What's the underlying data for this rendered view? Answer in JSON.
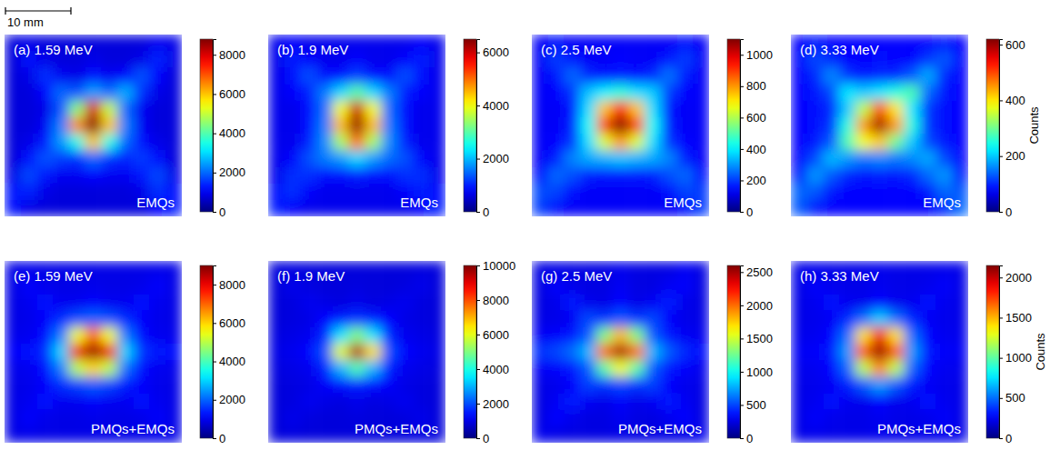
{
  "scale_bar": {
    "label": "10 mm"
  },
  "chart_data": [
    {
      "type": "heatmap",
      "title": "(a) 1.59 MeV",
      "annotation": "EMQs",
      "tick_labels": false,
      "colorbar_lim": [
        0,
        8800
      ],
      "colorbar_ticks": [
        0,
        2000,
        4000,
        6000,
        8000
      ],
      "cells": [
        [
          800,
          900,
          800,
          800,
          800,
          800,
          800,
          800,
          800,
          1000,
          900
        ],
        [
          800,
          1200,
          900,
          800,
          800,
          900,
          800,
          800,
          900,
          1400,
          900
        ],
        [
          800,
          900,
          1500,
          1000,
          900,
          1200,
          1000,
          1100,
          1800,
          1100,
          800
        ],
        [
          800,
          800,
          1100,
          2000,
          1800,
          2500,
          2000,
          2600,
          1500,
          900,
          800
        ],
        [
          800,
          800,
          900,
          1800,
          4500,
          8000,
          5000,
          2000,
          1000,
          800,
          800
        ],
        [
          800,
          800,
          1000,
          2200,
          6500,
          8800,
          6000,
          2200,
          1000,
          800,
          800
        ],
        [
          800,
          900,
          1300,
          2400,
          3500,
          6000,
          3500,
          2000,
          1200,
          900,
          800
        ],
        [
          800,
          1200,
          1800,
          1600,
          1500,
          2000,
          1500,
          1400,
          1600,
          1200,
          800
        ],
        [
          900,
          1700,
          1300,
          1000,
          1000,
          1100,
          1000,
          1000,
          1300,
          1700,
          900
        ],
        [
          1300,
          1400,
          900,
          800,
          800,
          800,
          800,
          800,
          900,
          1500,
          1200
        ],
        [
          1200,
          900,
          800,
          800,
          800,
          800,
          800,
          800,
          800,
          1100,
          1300
        ]
      ]
    },
    {
      "type": "heatmap",
      "title": "(b) 1.9 MeV",
      "annotation": "EMQs",
      "tick_labels": false,
      "colorbar_lim": [
        0,
        6500
      ],
      "colorbar_ticks": [
        0,
        2000,
        4000,
        6000
      ],
      "cells": [
        [
          700,
          800,
          700,
          700,
          700,
          700,
          700,
          700,
          700,
          800,
          700
        ],
        [
          700,
          1000,
          800,
          700,
          700,
          800,
          700,
          700,
          800,
          1000,
          700
        ],
        [
          700,
          900,
          1300,
          900,
          900,
          1200,
          900,
          900,
          1300,
          900,
          700
        ],
        [
          700,
          800,
          1000,
          1600,
          2200,
          3000,
          2200,
          1600,
          1000,
          800,
          700
        ],
        [
          700,
          700,
          900,
          1500,
          4000,
          6000,
          4000,
          1500,
          900,
          700,
          700
        ],
        [
          700,
          700,
          900,
          1600,
          4500,
          6400,
          4500,
          1600,
          900,
          700,
          700
        ],
        [
          700,
          700,
          1000,
          1700,
          3500,
          5000,
          3500,
          1700,
          1000,
          700,
          700
        ],
        [
          700,
          800,
          1300,
          1600,
          1800,
          2200,
          1800,
          1500,
          1300,
          800,
          700
        ],
        [
          700,
          1100,
          1100,
          900,
          900,
          1000,
          900,
          900,
          1100,
          1100,
          700
        ],
        [
          900,
          1100,
          800,
          700,
          700,
          700,
          700,
          700,
          800,
          1000,
          900
        ],
        [
          1000,
          800,
          700,
          700,
          700,
          700,
          700,
          700,
          700,
          800,
          1000
        ]
      ]
    },
    {
      "type": "heatmap",
      "title": "(c) 2.5 MeV",
      "annotation": "EMQs",
      "tick_labels": false,
      "colorbar_lim": [
        0,
        1100
      ],
      "colorbar_ticks": [
        0,
        200,
        400,
        600,
        800,
        1000
      ],
      "cells": [
        [
          130,
          150,
          130,
          130,
          130,
          130,
          130,
          130,
          130,
          150,
          130
        ],
        [
          130,
          200,
          160,
          130,
          130,
          140,
          130,
          130,
          160,
          200,
          130
        ],
        [
          130,
          160,
          250,
          180,
          150,
          170,
          150,
          180,
          260,
          170,
          130
        ],
        [
          130,
          140,
          190,
          350,
          400,
          450,
          380,
          360,
          200,
          140,
          130
        ],
        [
          130,
          130,
          160,
          380,
          750,
          950,
          750,
          380,
          160,
          130,
          130
        ],
        [
          130,
          130,
          170,
          420,
          900,
          1100,
          900,
          420,
          170,
          130,
          130
        ],
        [
          130,
          140,
          190,
          380,
          650,
          800,
          650,
          380,
          190,
          140,
          130
        ],
        [
          130,
          170,
          280,
          320,
          330,
          350,
          330,
          320,
          280,
          170,
          130
        ],
        [
          150,
          250,
          220,
          170,
          160,
          160,
          160,
          170,
          220,
          250,
          150
        ],
        [
          220,
          210,
          150,
          130,
          130,
          130,
          130,
          130,
          150,
          210,
          200
        ],
        [
          200,
          150,
          130,
          130,
          130,
          130,
          130,
          130,
          130,
          150,
          200
        ]
      ]
    },
    {
      "type": "heatmap",
      "title": "(d) 3.33 MeV",
      "annotation": "EMQs",
      "tick_labels": false,
      "colorbar_lim": [
        0,
        620
      ],
      "colorbar_ticks": [
        0,
        200,
        400,
        600
      ],
      "colorbar_label": "Counts",
      "cells": [
        [
          80,
          90,
          80,
          80,
          80,
          80,
          80,
          80,
          80,
          90,
          80
        ],
        [
          80,
          120,
          100,
          80,
          80,
          85,
          80,
          80,
          110,
          130,
          80
        ],
        [
          80,
          100,
          160,
          110,
          90,
          100,
          100,
          130,
          180,
          100,
          80
        ],
        [
          80,
          90,
          120,
          220,
          200,
          220,
          250,
          280,
          140,
          90,
          80
        ],
        [
          80,
          85,
          100,
          200,
          350,
          500,
          400,
          220,
          110,
          85,
          80
        ],
        [
          80,
          85,
          110,
          250,
          450,
          600,
          450,
          250,
          110,
          85,
          80
        ],
        [
          80,
          90,
          130,
          280,
          380,
          420,
          300,
          200,
          120,
          90,
          80
        ],
        [
          80,
          120,
          190,
          170,
          150,
          160,
          150,
          160,
          180,
          120,
          80
        ],
        [
          90,
          170,
          130,
          100,
          90,
          95,
          90,
          100,
          140,
          170,
          90
        ],
        [
          140,
          130,
          90,
          80,
          80,
          80,
          80,
          80,
          90,
          140,
          130
        ],
        [
          130,
          90,
          80,
          80,
          80,
          80,
          80,
          80,
          80,
          100,
          140
        ]
      ]
    },
    {
      "type": "heatmap",
      "title": "(e) 1.59 MeV",
      "annotation": "PMQs+EMQs",
      "tick_labels": false,
      "colorbar_lim": [
        0,
        9000
      ],
      "colorbar_ticks": [
        0,
        2000,
        4000,
        6000,
        8000
      ],
      "cells": [
        [
          900,
          950,
          900,
          900,
          900,
          900,
          900,
          900,
          900,
          950,
          900
        ],
        [
          900,
          1100,
          950,
          900,
          900,
          950,
          900,
          900,
          950,
          1100,
          900
        ],
        [
          900,
          1000,
          1200,
          1000,
          1000,
          1100,
          1000,
          1000,
          1200,
          1000,
          900
        ],
        [
          900,
          950,
          1100,
          1500,
          1800,
          2000,
          1800,
          1500,
          1100,
          950,
          900
        ],
        [
          950,
          1000,
          1200,
          2200,
          5500,
          7000,
          5500,
          2200,
          1200,
          1000,
          950
        ],
        [
          1100,
          1200,
          1500,
          3000,
          8000,
          8800,
          8000,
          3000,
          1600,
          1300,
          1200
        ],
        [
          950,
          1000,
          1200,
          2200,
          5000,
          6000,
          5000,
          2100,
          1200,
          1000,
          950
        ],
        [
          900,
          950,
          1100,
          1500,
          1700,
          1900,
          1700,
          1400,
          1100,
          950,
          900
        ],
        [
          900,
          1000,
          1200,
          1000,
          1000,
          1100,
          1000,
          1000,
          1200,
          1000,
          900
        ],
        [
          900,
          1100,
          950,
          900,
          900,
          950,
          900,
          900,
          950,
          1100,
          900
        ],
        [
          900,
          950,
          900,
          900,
          900,
          900,
          900,
          900,
          900,
          950,
          900
        ]
      ]
    },
    {
      "type": "heatmap",
      "title": "(f) 1.9 MeV",
      "annotation": "PMQs+EMQs",
      "tick_labels": false,
      "colorbar_lim": [
        0,
        10000
      ],
      "colorbar_ticks": [
        0,
        2000,
        4000,
        6000,
        8000,
        10000
      ],
      "cells": [
        [
          900,
          950,
          900,
          900,
          900,
          900,
          900,
          900,
          900,
          950,
          900
        ],
        [
          900,
          1050,
          950,
          900,
          900,
          950,
          900,
          900,
          950,
          1050,
          900
        ],
        [
          900,
          950,
          1100,
          1000,
          950,
          1050,
          950,
          1000,
          1100,
          950,
          900
        ],
        [
          900,
          950,
          1000,
          1300,
          1500,
          1700,
          1500,
          1300,
          1000,
          950,
          900
        ],
        [
          950,
          1000,
          1100,
          1600,
          3500,
          5000,
          3500,
          1600,
          1100,
          1000,
          950
        ],
        [
          1000,
          1100,
          1300,
          2000,
          6000,
          9500,
          6500,
          2000,
          1300,
          1100,
          1000
        ],
        [
          950,
          1000,
          1100,
          1500,
          3000,
          4500,
          3000,
          1500,
          1100,
          1000,
          950
        ],
        [
          900,
          950,
          1000,
          1200,
          1400,
          1600,
          1400,
          1200,
          1000,
          950,
          900
        ],
        [
          900,
          950,
          1100,
          1000,
          950,
          1050,
          950,
          1000,
          1100,
          950,
          900
        ],
        [
          900,
          1050,
          950,
          900,
          900,
          950,
          900,
          900,
          950,
          1050,
          900
        ],
        [
          900,
          950,
          900,
          900,
          900,
          900,
          900,
          900,
          900,
          950,
          900
        ]
      ]
    },
    {
      "type": "heatmap",
      "title": "(g) 2.5 MeV",
      "annotation": "PMQs+EMQs",
      "tick_labels": false,
      "colorbar_lim": [
        0,
        2600
      ],
      "colorbar_ticks": [
        0,
        500,
        1000,
        1500,
        2000,
        2500
      ],
      "cells": [
        [
          250,
          260,
          250,
          250,
          250,
          280,
          250,
          250,
          250,
          300,
          250
        ],
        [
          250,
          320,
          270,
          250,
          250,
          300,
          250,
          250,
          300,
          320,
          250
        ],
        [
          250,
          280,
          380,
          280,
          260,
          330,
          260,
          300,
          400,
          280,
          250
        ],
        [
          260,
          270,
          300,
          500,
          450,
          550,
          450,
          500,
          320,
          270,
          260
        ],
        [
          300,
          320,
          380,
          550,
          1300,
          1800,
          1300,
          550,
          380,
          300,
          280
        ],
        [
          450,
          500,
          600,
          800,
          2000,
          2500,
          2000,
          800,
          550,
          420,
          350
        ],
        [
          300,
          320,
          380,
          550,
          1200,
          1600,
          1200,
          550,
          380,
          320,
          280
        ],
        [
          260,
          280,
          320,
          480,
          450,
          500,
          450,
          480,
          320,
          280,
          260
        ],
        [
          250,
          300,
          400,
          300,
          270,
          320,
          270,
          300,
          380,
          300,
          250
        ],
        [
          250,
          340,
          280,
          250,
          250,
          290,
          250,
          250,
          290,
          340,
          250
        ],
        [
          280,
          260,
          250,
          250,
          250,
          260,
          250,
          250,
          250,
          260,
          280
        ]
      ]
    },
    {
      "type": "heatmap",
      "title": "(h) 3.33 MeV",
      "annotation": "PMQs+EMQs",
      "tick_labels": false,
      "colorbar_lim": [
        0,
        2150
      ],
      "colorbar_ticks": [
        0,
        500,
        1000,
        1500,
        2000
      ],
      "colorbar_label": "Counts",
      "cells": [
        [
          220,
          230,
          220,
          220,
          220,
          230,
          220,
          220,
          220,
          230,
          220
        ],
        [
          220,
          260,
          230,
          220,
          220,
          240,
          220,
          220,
          230,
          260,
          220
        ],
        [
          220,
          240,
          290,
          240,
          230,
          280,
          230,
          240,
          290,
          240,
          220
        ],
        [
          220,
          230,
          250,
          350,
          500,
          700,
          500,
          350,
          250,
          230,
          220
        ],
        [
          230,
          240,
          280,
          500,
          1400,
          1900,
          1400,
          500,
          280,
          240,
          230
        ],
        [
          250,
          260,
          320,
          600,
          1700,
          2100,
          1700,
          600,
          320,
          260,
          250
        ],
        [
          230,
          240,
          280,
          480,
          1200,
          1600,
          1200,
          480,
          280,
          240,
          230
        ],
        [
          220,
          230,
          250,
          330,
          450,
          600,
          450,
          330,
          250,
          230,
          220
        ],
        [
          220,
          240,
          290,
          240,
          230,
          270,
          230,
          240,
          290,
          240,
          220
        ],
        [
          220,
          260,
          230,
          220,
          220,
          240,
          220,
          220,
          230,
          260,
          220
        ],
        [
          220,
          230,
          220,
          220,
          220,
          230,
          220,
          220,
          220,
          230,
          220
        ]
      ]
    }
  ]
}
